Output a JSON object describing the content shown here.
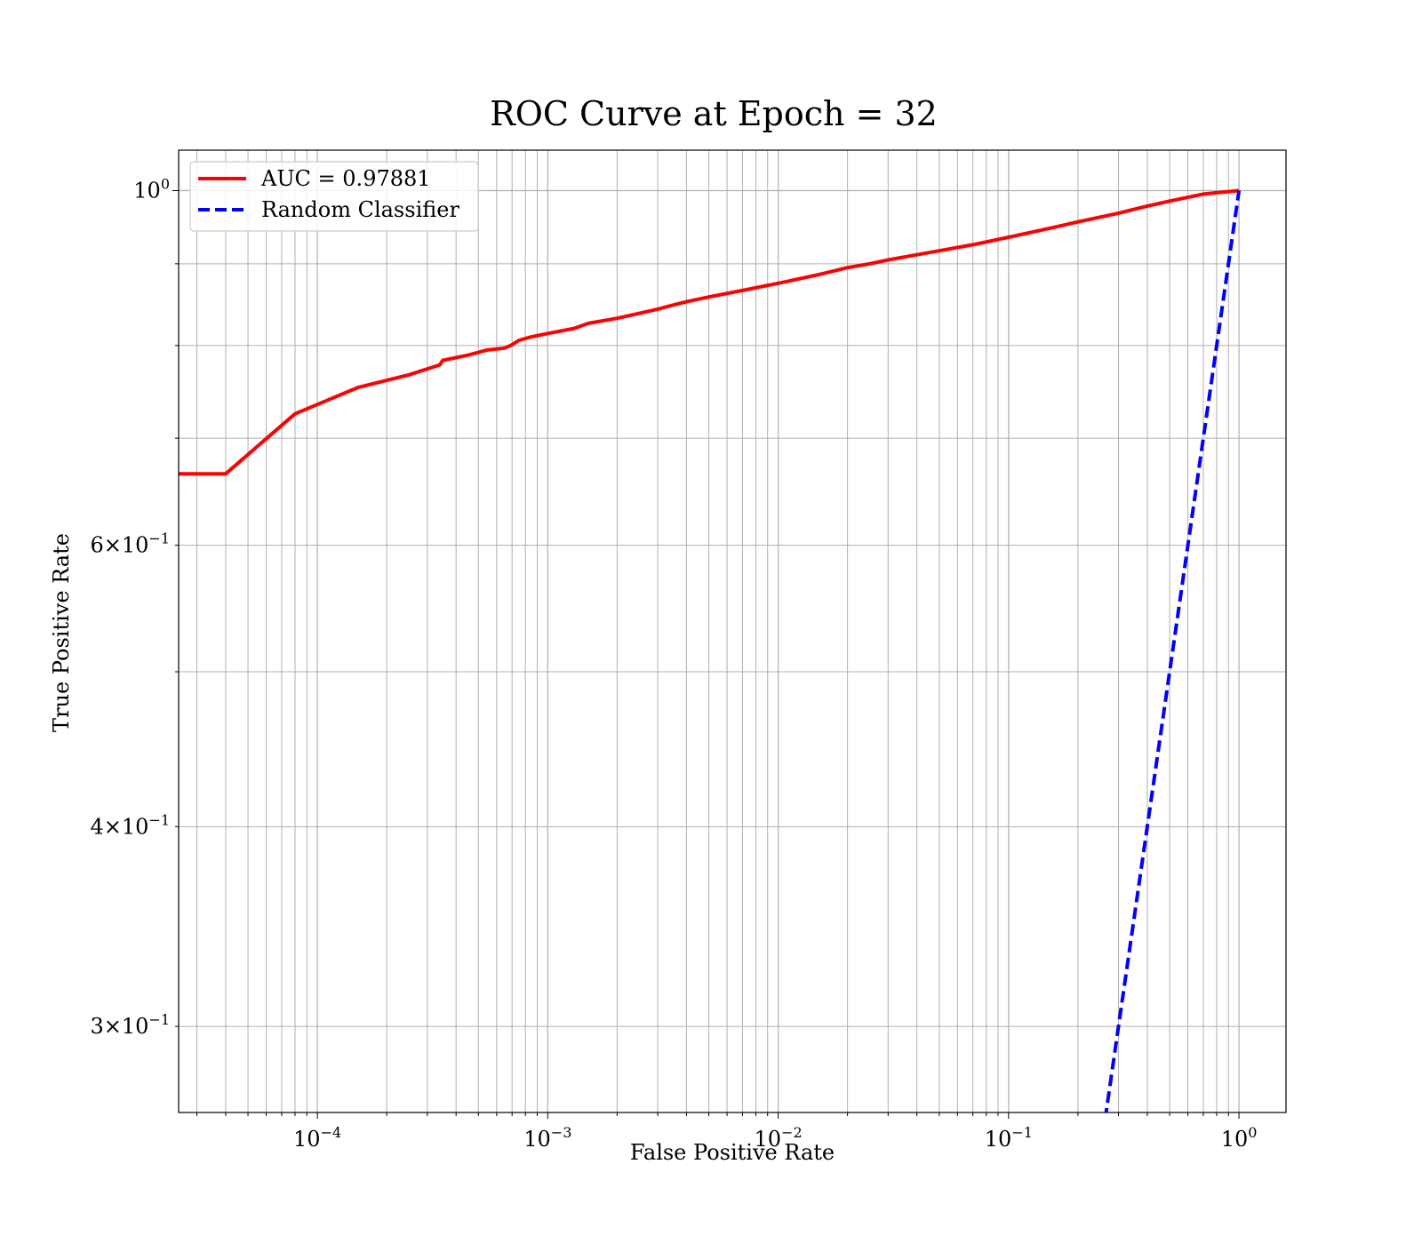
{
  "chart_data": {
    "type": "line",
    "title": "ROC Curve at Epoch = 32",
    "xlabel": "False Positive Rate",
    "ylabel": "True Positive Rate",
    "xscale": "log",
    "yscale": "log",
    "xlim": [
      2.5e-05,
      1.6
    ],
    "ylim": [
      0.265,
      1.06
    ],
    "grid": true,
    "grid_which": "both",
    "legend_position": "upper-left",
    "x_ticks": [
      {
        "value": 0.0001,
        "base": "10",
        "exp": "−4"
      },
      {
        "value": 0.001,
        "base": "10",
        "exp": "−3"
      },
      {
        "value": 0.01,
        "base": "10",
        "exp": "−2"
      },
      {
        "value": 0.1,
        "base": "10",
        "exp": "−1"
      },
      {
        "value": 1,
        "base": "10",
        "exp": "0"
      }
    ],
    "y_ticks": [
      {
        "value": 1.0,
        "base": "10",
        "exp": "0"
      },
      {
        "value": 0.6,
        "base": "6×10",
        "exp": "−1"
      },
      {
        "value": 0.4,
        "base": "4×10",
        "exp": "−1"
      },
      {
        "value": 0.3,
        "base": "3×10",
        "exp": "−1"
      }
    ],
    "y_minor_ticks": [
      0.5,
      0.7,
      0.8,
      0.9
    ],
    "series": [
      {
        "name": "AUC = 0.97881",
        "color": "#ff0000",
        "style": "solid",
        "x": [
          2.5e-05,
          4e-05,
          8e-05,
          0.00015,
          0.00025,
          0.00034,
          0.00035,
          0.00045,
          0.00055,
          0.00065,
          0.0007,
          0.00075,
          0.00085,
          0.001,
          0.0013,
          0.0015,
          0.002,
          0.0025,
          0.003,
          0.0035,
          0.004,
          0.005,
          0.007,
          0.01,
          0.015,
          0.02,
          0.025,
          0.03,
          0.05,
          0.07,
          0.1,
          0.15,
          0.2,
          0.3,
          0.4,
          0.5,
          0.7,
          1.0
        ],
        "y": [
          0.665,
          0.665,
          0.725,
          0.753,
          0.767,
          0.778,
          0.783,
          0.789,
          0.795,
          0.797,
          0.801,
          0.806,
          0.81,
          0.814,
          0.82,
          0.826,
          0.832,
          0.838,
          0.843,
          0.848,
          0.852,
          0.858,
          0.866,
          0.875,
          0.886,
          0.895,
          0.9,
          0.905,
          0.917,
          0.925,
          0.935,
          0.947,
          0.956,
          0.968,
          0.978,
          0.985,
          0.995,
          1.0
        ]
      },
      {
        "name": "Random Classifier",
        "color": "#0000ff",
        "style": "dashed",
        "x": [
          0.25,
          0.4,
          0.6,
          0.8,
          1.0
        ],
        "y": [
          0.25,
          0.4,
          0.6,
          0.8,
          1.0
        ]
      }
    ]
  }
}
